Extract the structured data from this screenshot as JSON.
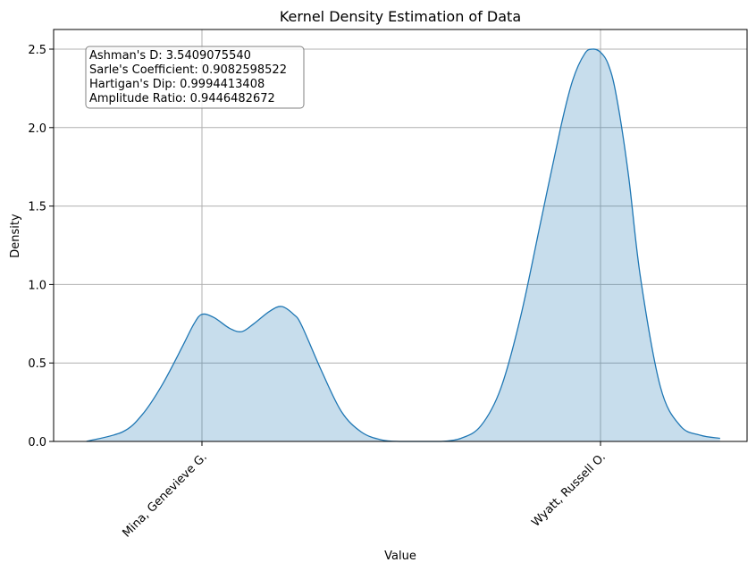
{
  "chart_data": {
    "type": "area",
    "title": "Kernel Density Estimation of Data",
    "xlabel": "Value",
    "ylabel": "Density",
    "ylim": [
      0,
      2.6
    ],
    "yticks": [
      "0.0",
      "0.5",
      "1.0",
      "1.5",
      "2.0",
      "2.5"
    ],
    "xlim": [
      -0.29,
      1.3
    ],
    "x_tick_positions": [
      0,
      1
    ],
    "x_tick_labels": [
      "Mina, Genevieve G.",
      "Wyatt, Russell O."
    ],
    "grid": true,
    "line_color": "#1f77b4",
    "fill_color": "#1f77b4",
    "fill_opacity": 0.25,
    "series": [
      {
        "x": [
          -0.29,
          -0.2,
          -0.15,
          -0.1,
          -0.05,
          -0.02,
          0.0,
          0.03,
          0.07,
          0.1,
          0.13,
          0.17,
          0.2,
          0.23,
          0.25,
          0.3,
          0.35,
          0.4,
          0.45,
          0.5,
          0.55,
          0.6,
          0.65,
          0.7,
          0.75,
          0.8,
          0.85,
          0.9,
          0.93,
          0.96,
          0.98,
          1.0,
          1.02,
          1.04,
          1.07,
          1.1,
          1.15,
          1.2,
          1.25,
          1.3
        ],
        "y": [
          0.0,
          0.06,
          0.17,
          0.36,
          0.6,
          0.75,
          0.81,
          0.79,
          0.72,
          0.7,
          0.75,
          0.83,
          0.86,
          0.81,
          0.74,
          0.45,
          0.19,
          0.06,
          0.01,
          0.0,
          0.0,
          0.0,
          0.02,
          0.1,
          0.34,
          0.8,
          1.4,
          2.0,
          2.3,
          2.47,
          2.5,
          2.48,
          2.4,
          2.2,
          1.7,
          1.05,
          0.35,
          0.1,
          0.04,
          0.02
        ]
      }
    ],
    "annotation_lines": [
      "Ashman's D: 3.5409075540",
      "Sarle's Coefficient: 0.9082598522",
      "Hartigan's Dip: 0.9994413408",
      "Amplitude Ratio: 0.9446482672"
    ]
  }
}
